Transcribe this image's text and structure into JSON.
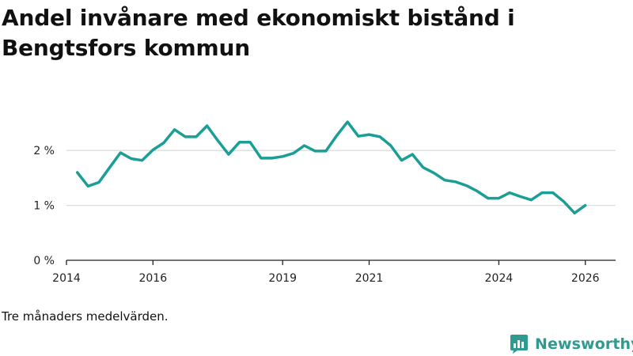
{
  "header": {
    "title": "Andel invånare med ekonomiskt bistånd i Bengtsfors kommun"
  },
  "footer": {
    "caption": "Tre månaders medelvärden.",
    "brand": "Newsworthy"
  },
  "colors": {
    "line": "#1a9e95",
    "grid": "#dddddd",
    "axis": "#222222",
    "brand": "#2f9a8f"
  },
  "chart_data": {
    "type": "line",
    "title": "Andel invånare med ekonomiskt bistånd i Bengtsfors kommun",
    "xlabel": "",
    "ylabel": "",
    "xlim": [
      2014.0,
      2026.7
    ],
    "ylim": [
      0,
      3.3
    ],
    "x_ticks": [
      {
        "value": 2014,
        "label": "2014"
      },
      {
        "value": 2016,
        "label": "2016"
      },
      {
        "value": 2019,
        "label": "2019"
      },
      {
        "value": 2021,
        "label": "2021"
      },
      {
        "value": 2024,
        "label": "2024"
      },
      {
        "value": 2026,
        "label": "2026"
      }
    ],
    "y_ticks": [
      {
        "value": 0,
        "label": "0 %"
      },
      {
        "value": 1,
        "label": "1 %"
      },
      {
        "value": 2,
        "label": "2 %"
      }
    ],
    "series": [
      {
        "name": "Andel invånare med ekonomiskt bistånd",
        "x": [
          2014.25,
          2014.5,
          2014.75,
          2015.0,
          2015.25,
          2015.5,
          2015.75,
          2016.0,
          2016.25,
          2016.5,
          2016.75,
          2017.0,
          2017.25,
          2017.5,
          2017.75,
          2018.0,
          2018.25,
          2018.5,
          2018.75,
          2019.0,
          2019.25,
          2019.5,
          2019.75,
          2020.0,
          2020.25,
          2020.5,
          2020.75,
          2021.0,
          2021.25,
          2021.5,
          2021.75,
          2022.0,
          2022.25,
          2022.5,
          2022.75,
          2023.0,
          2023.25,
          2023.5,
          2023.75,
          2024.0,
          2024.25,
          2024.5,
          2024.75,
          2025.0,
          2025.25,
          2025.5,
          2025.75,
          2026.0
        ],
        "values": [
          1.6,
          1.35,
          1.42,
          1.69,
          1.96,
          1.85,
          1.82,
          2.01,
          2.14,
          2.38,
          2.25,
          2.25,
          2.45,
          2.18,
          1.93,
          2.15,
          2.15,
          1.86,
          1.86,
          1.89,
          1.95,
          2.09,
          1.99,
          1.99,
          2.27,
          2.52,
          2.26,
          2.29,
          2.25,
          2.09,
          1.82,
          1.93,
          1.69,
          1.59,
          1.46,
          1.43,
          1.36,
          1.26,
          1.13,
          1.13,
          1.23,
          1.16,
          1.1,
          1.23,
          1.23,
          1.07,
          0.86,
          1.0
        ]
      }
    ]
  }
}
